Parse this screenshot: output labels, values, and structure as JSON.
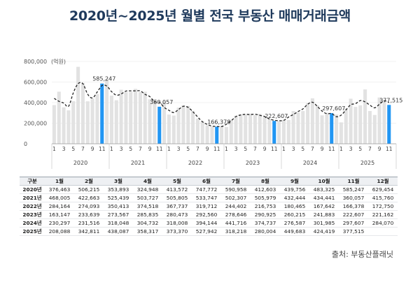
{
  "title": "2020년~2025년 월별 전국 부동산 매매거래금액",
  "source": "출처: 부동산플래닛",
  "chart_data": {
    "type": "bar",
    "y_unit_label": "(억원)",
    "y_ticks": [
      "0",
      "200,000",
      "400,000",
      "600,000",
      "800,000"
    ],
    "ylim": [
      0,
      800000
    ],
    "grid": true,
    "month_tick_labels": [
      "1",
      "3",
      "5",
      "7",
      "9",
      "11"
    ],
    "years": [
      "2020",
      "2021",
      "2022",
      "2023",
      "2024",
      "2025"
    ],
    "bar_color": "#e2e2e2",
    "highlight_color": "#2196f3",
    "trend_color": "#222222",
    "highlight_month": 11,
    "highlight_labels": [
      "585,247",
      "360,057",
      "166,378",
      "222,607",
      "297,607",
      "377,515"
    ],
    "series": [
      {
        "year": "2020",
        "values": [
          376463,
          506215,
          353893,
          324948,
          413572,
          747772,
          590958,
          412603,
          439756,
          483325,
          585247,
          629454
        ]
      },
      {
        "year": "2021",
        "values": [
          468005,
          422663,
          525439,
          503727,
          505805,
          533747,
          502307,
          505979,
          432444,
          434441,
          360057,
          415760
        ]
      },
      {
        "year": "2022",
        "values": [
          284164,
          274093,
          350413,
          374518,
          367737,
          319712,
          244402,
          216753,
          180465,
          167642,
          166378,
          172750
        ]
      },
      {
        "year": "2023",
        "values": [
          163147,
          233639,
          273567,
          285835,
          280473,
          292560,
          278646,
          290925,
          260215,
          241883,
          222607,
          221162
        ]
      },
      {
        "year": "2024",
        "values": [
          230297,
          231516,
          318048,
          304732,
          318008,
          394144,
          441716,
          374737,
          276587,
          301985,
          297607,
          284070
        ]
      },
      {
        "year": "2025",
        "values": [
          208088,
          342811,
          438087,
          358317,
          373370,
          527942,
          318218,
          280004,
          449683,
          424419,
          377515,
          null
        ]
      }
    ]
  },
  "table": {
    "header": [
      "구분",
      "1월",
      "2월",
      "3월",
      "4월",
      "5월",
      "6월",
      "7월",
      "8월",
      "9월",
      "10월",
      "11월",
      "12월"
    ],
    "rows": [
      [
        "2020년",
        "376,463",
        "506,215",
        "353,893",
        "324,948",
        "413,572",
        "747,772",
        "590,958",
        "412,603",
        "439,756",
        "483,325",
        "585,247",
        "629,454"
      ],
      [
        "2021년",
        "468,005",
        "422,663",
        "525,439",
        "503,727",
        "505,805",
        "533,747",
        "502,307",
        "505,979",
        "432,444",
        "434,441",
        "360,057",
        "415,760"
      ],
      [
        "2022년",
        "284,164",
        "274,093",
        "350,413",
        "374,518",
        "367,737",
        "319,712",
        "244,402",
        "216,753",
        "180,465",
        "167,642",
        "166,378",
        "172,750"
      ],
      [
        "2023년",
        "163,147",
        "233,639",
        "273,567",
        "285,835",
        "280,473",
        "292,560",
        "278,646",
        "290,925",
        "260,215",
        "241,883",
        "222,607",
        "221,162"
      ],
      [
        "2024년",
        "230,297",
        "231,516",
        "318,048",
        "304,732",
        "318,008",
        "394,144",
        "441,716",
        "374,737",
        "276,587",
        "301,985",
        "297,607",
        "284,070"
      ],
      [
        "2025년",
        "208,088",
        "342,811",
        "438,087",
        "358,317",
        "373,370",
        "527,942",
        "318,218",
        "280,004",
        "449,683",
        "424,419",
        "377,515",
        ""
      ]
    ]
  }
}
